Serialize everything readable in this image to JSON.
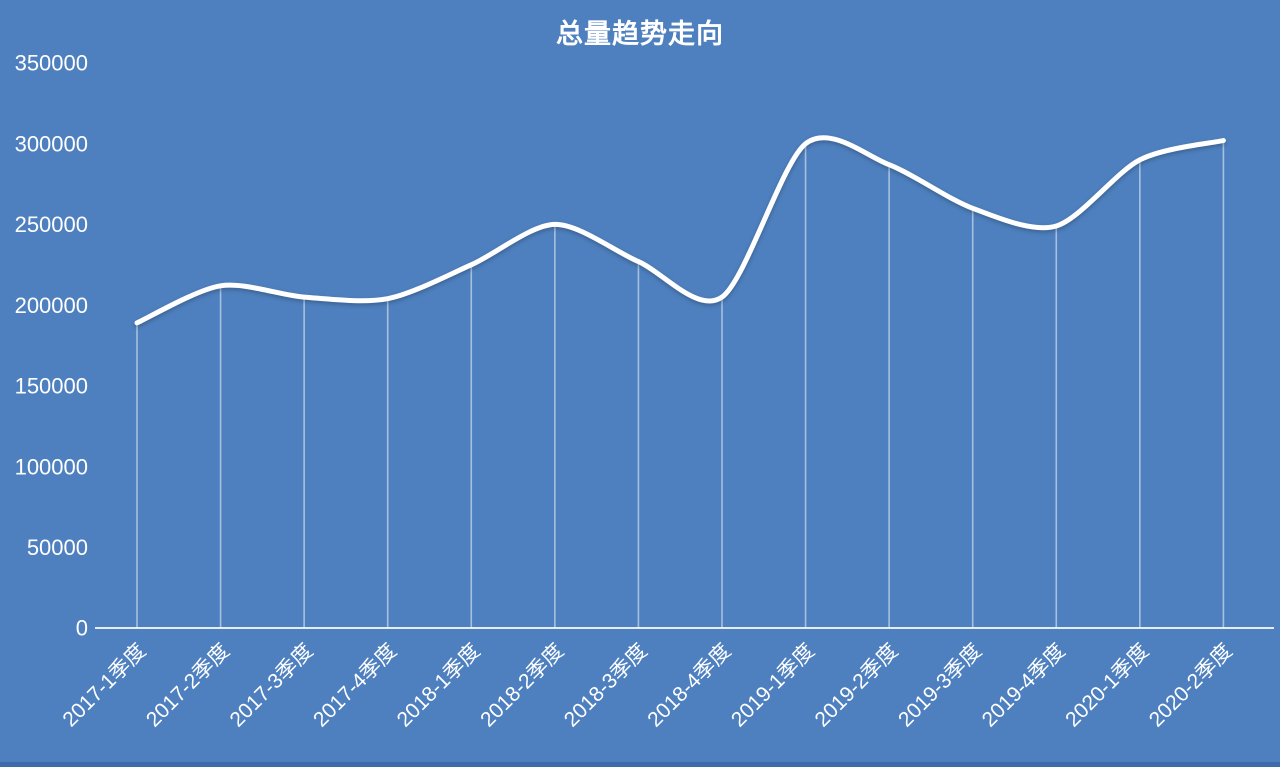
{
  "page": {
    "background_color": "#4e80bf",
    "bottom_bar_color": "#3e6ba9",
    "text_color": "#ffffff"
  },
  "chart_data": {
    "type": "line",
    "title": "总量趋势走向",
    "categories": [
      "2017-1季度",
      "2017-2季度",
      "2017-3季度",
      "2017-4季度",
      "2018-1季度",
      "2018-2季度",
      "2018-3季度",
      "2018-4季度",
      "2019-1季度",
      "2019-2季度",
      "2019-3季度",
      "2019-4季度",
      "2020-1季度",
      "2020-2季度"
    ],
    "values": [
      189000,
      212000,
      205000,
      204000,
      225000,
      250000,
      227000,
      205000,
      300000,
      287000,
      260000,
      249000,
      290000,
      302000
    ],
    "ylim": [
      0,
      350000
    ],
    "yticks": [
      0,
      50000,
      100000,
      150000,
      200000,
      250000,
      300000,
      350000
    ],
    "xlabel": "",
    "ylabel": "",
    "grid": false,
    "legend": "none",
    "smooth": true,
    "x_label_rotation": -45,
    "line_color": "#ffffff",
    "dropline_color": "rgba(255,255,255,0.5)",
    "axis_color": "rgba(255,255,255,0.85)",
    "tick_font_size": 22,
    "x_label_font_size": 21
  }
}
